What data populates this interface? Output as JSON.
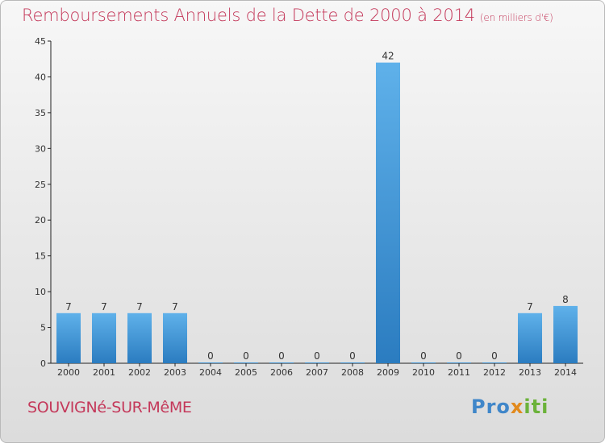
{
  "header": {
    "title": "Remboursements Annuels de la Dette de 2000 à 2014",
    "subtitle": "(en milliers d'€)"
  },
  "footer": {
    "commune": "SOUVIGNé-SUR-MêME",
    "brand_parts": [
      "Pro",
      "x",
      "iti"
    ]
  },
  "colors": {
    "title": "#c4385a",
    "bar_top": "#5fb1ea",
    "bar_bottom": "#2b7cc0",
    "brand_blue": "#3f86c9",
    "brand_orange": "#e28a1d",
    "brand_green": "#6bb23a"
  },
  "chart_data": {
    "type": "bar",
    "categories": [
      "2000",
      "2001",
      "2002",
      "2003",
      "2004",
      "2005",
      "2006",
      "2007",
      "2008",
      "2009",
      "2010",
      "2011",
      "2012",
      "2013",
      "2014"
    ],
    "values": [
      7,
      7,
      7,
      7,
      0,
      0,
      0,
      0,
      0,
      42,
      0,
      0,
      0,
      7,
      8
    ],
    "data_labels": [
      "7",
      "7",
      "7",
      "7",
      "0",
      "0",
      "0",
      "0",
      "0",
      "42",
      "0",
      "0",
      "0",
      "7",
      "8"
    ],
    "yticks": [
      0,
      5,
      10,
      15,
      20,
      25,
      30,
      35,
      40,
      45
    ],
    "ylim": [
      0,
      45
    ],
    "grid": false,
    "legend": "none"
  }
}
